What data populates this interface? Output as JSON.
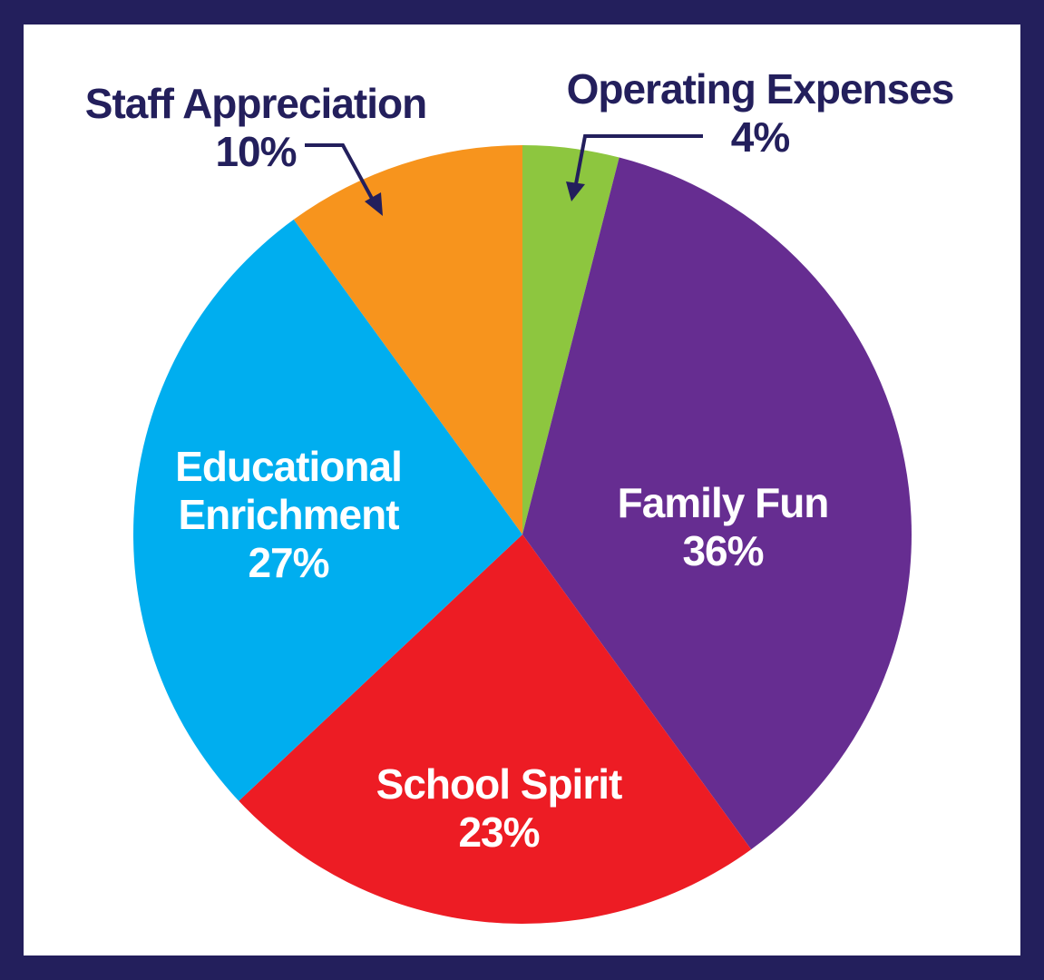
{
  "chart_data": {
    "type": "pie",
    "categories": [
      "Operating Expenses",
      "Family Fun",
      "School Spirit",
      "Educational Enrichment",
      "Staff Appreciation"
    ],
    "values": [
      4,
      36,
      23,
      27,
      10
    ],
    "value_labels": [
      "4%",
      "36%",
      "23%",
      "27%",
      "10%"
    ],
    "colors": [
      "#8dc63f",
      "#662d91",
      "#ed1c24",
      "#00aeef",
      "#f7941d"
    ]
  }
}
